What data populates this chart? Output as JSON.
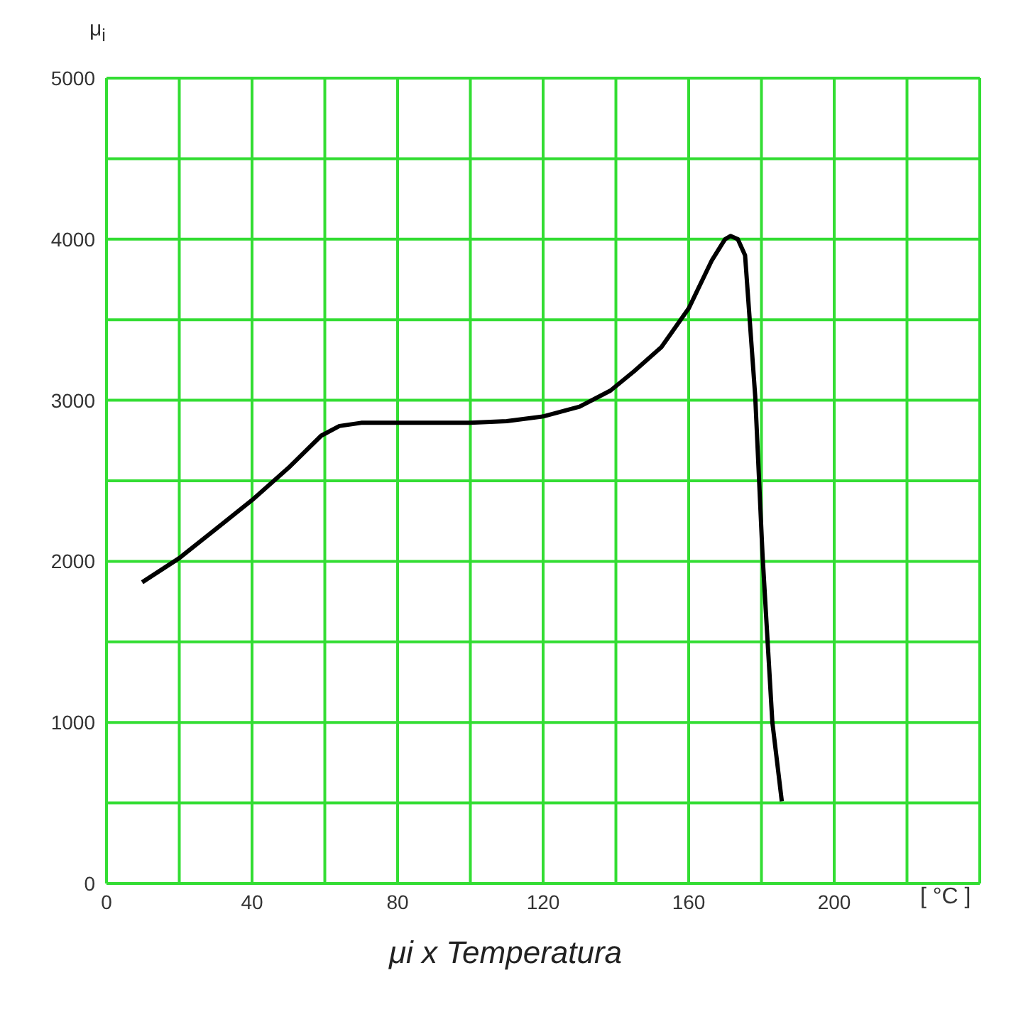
{
  "chart_data": {
    "type": "line",
    "title": "μi x Temperatura",
    "xlabel": "[ °C ]",
    "ylabel": "μ$_{i}$",
    "x": [
      9.8,
      20,
      30,
      40,
      50,
      59,
      64,
      70,
      80,
      90,
      100,
      110,
      120,
      130,
      138.5,
      145,
      152.5,
      160,
      166.4,
      170,
      171.5,
      173.5,
      175.5,
      178.3,
      180.3,
      183,
      185.6
    ],
    "series": [
      {
        "color": "#000000",
        "values": [
          1870,
          2020,
          2200,
          2380,
          2580,
          2780,
          2840,
          2860,
          2860,
          2860,
          2860,
          2870,
          2900,
          2960,
          3060,
          3180,
          3330,
          3570,
          3870,
          4000,
          4020,
          4000,
          3900,
          3020,
          2040,
          1000,
          510
        ]
      }
    ],
    "xlim": [
      0,
      240
    ],
    "xticks": [
      0,
      {
        "value": 20,
        "label": null
      },
      40,
      {
        "value": 60,
        "label": null
      },
      80,
      {
        "value": 100,
        "label": null
      },
      120,
      {
        "value": 140,
        "label": null
      },
      160,
      {
        "value": 180,
        "label": null
      },
      200,
      {
        "value": 220,
        "label": null
      },
      {
        "value": 240,
        "label": null
      }
    ],
    "ylim": [
      0,
      5000
    ],
    "yticks": [
      0,
      {
        "value": 500,
        "label": null
      },
      1000,
      {
        "value": 1500,
        "label": null
      },
      2000,
      {
        "value": 2500,
        "label": null
      },
      3000,
      {
        "value": 3500,
        "label": null
      },
      4000,
      {
        "value": 4500,
        "label": null
      },
      5000
    ],
    "grid": true
  }
}
